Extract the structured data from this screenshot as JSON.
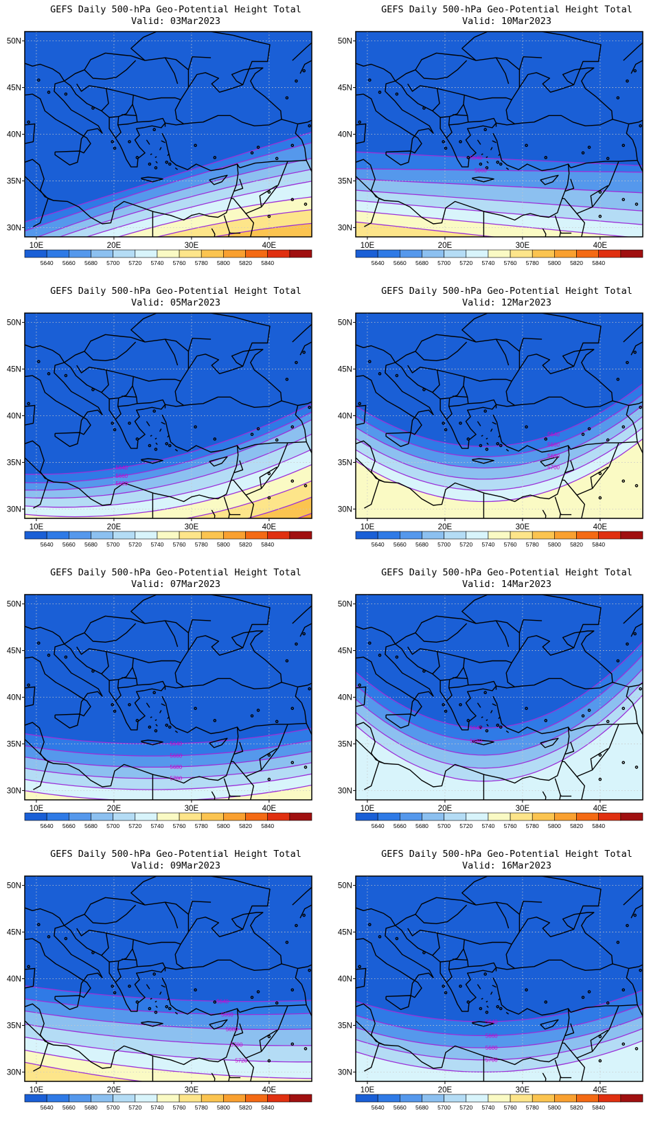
{
  "title_template": "GEFS Daily 500-hPa Geo-Potential Height Total",
  "valid_prefix": "Valid:",
  "lat_ticks": [
    "50N",
    "45N",
    "40N",
    "35N",
    "30N"
  ],
  "lon_ticks": [
    "10E",
    "20E",
    "30E",
    "40E"
  ],
  "colorbar": {
    "colors": [
      "#1a5fd6",
      "#2f7ae6",
      "#5598ec",
      "#8cc0f0",
      "#b4dcf5",
      "#d8f4fb",
      "#fafac4",
      "#fde58a",
      "#fbc450",
      "#f9a030",
      "#f46a14",
      "#e03010",
      "#a01010"
    ],
    "labels": [
      "5640",
      "5660",
      "5680",
      "5700",
      "5720",
      "5740",
      "5760",
      "5780",
      "5800",
      "5820",
      "5840"
    ]
  },
  "panels": [
    {
      "title": "GEFS Daily 500-hPa Geo-Potential Height Total",
      "valid": "03Mar2023",
      "labels": []
    },
    {
      "title": "GEFS Daily 500-hPa Geo-Potential Height Total",
      "valid": "10Mar2023",
      "labels": [
        "5640",
        "5660"
      ]
    },
    {
      "title": "GEFS Daily 500-hPa Geo-Potential Height Total",
      "valid": "05Mar2023",
      "labels": [
        "5640",
        "5660",
        "5680"
      ]
    },
    {
      "title": "GEFS Daily 500-hPa Geo-Potential Height Total",
      "valid": "12Mar2023",
      "labels": [
        "5640",
        "5660",
        "5680",
        "5700"
      ]
    },
    {
      "title": "GEFS Daily 500-hPa Geo-Potential Height Total",
      "valid": "07Mar2023",
      "labels": [
        "5640",
        "5660",
        "5680",
        "5700"
      ]
    },
    {
      "title": "GEFS Daily 500-hPa Geo-Potential Height Total",
      "valid": "14Mar2023",
      "labels": [
        "5640",
        "5660"
      ]
    },
    {
      "title": "GEFS Daily 500-hPa Geo-Potential Height Total",
      "valid": "09Mar2023",
      "labels": [
        "5640",
        "5660",
        "5680",
        "5700",
        "5720"
      ]
    },
    {
      "title": "GEFS Daily 500-hPa Geo-Potential Height Total",
      "valid": "16Mar2023",
      "labels": [
        "5640",
        "5660",
        "5680",
        "5700"
      ]
    }
  ]
}
